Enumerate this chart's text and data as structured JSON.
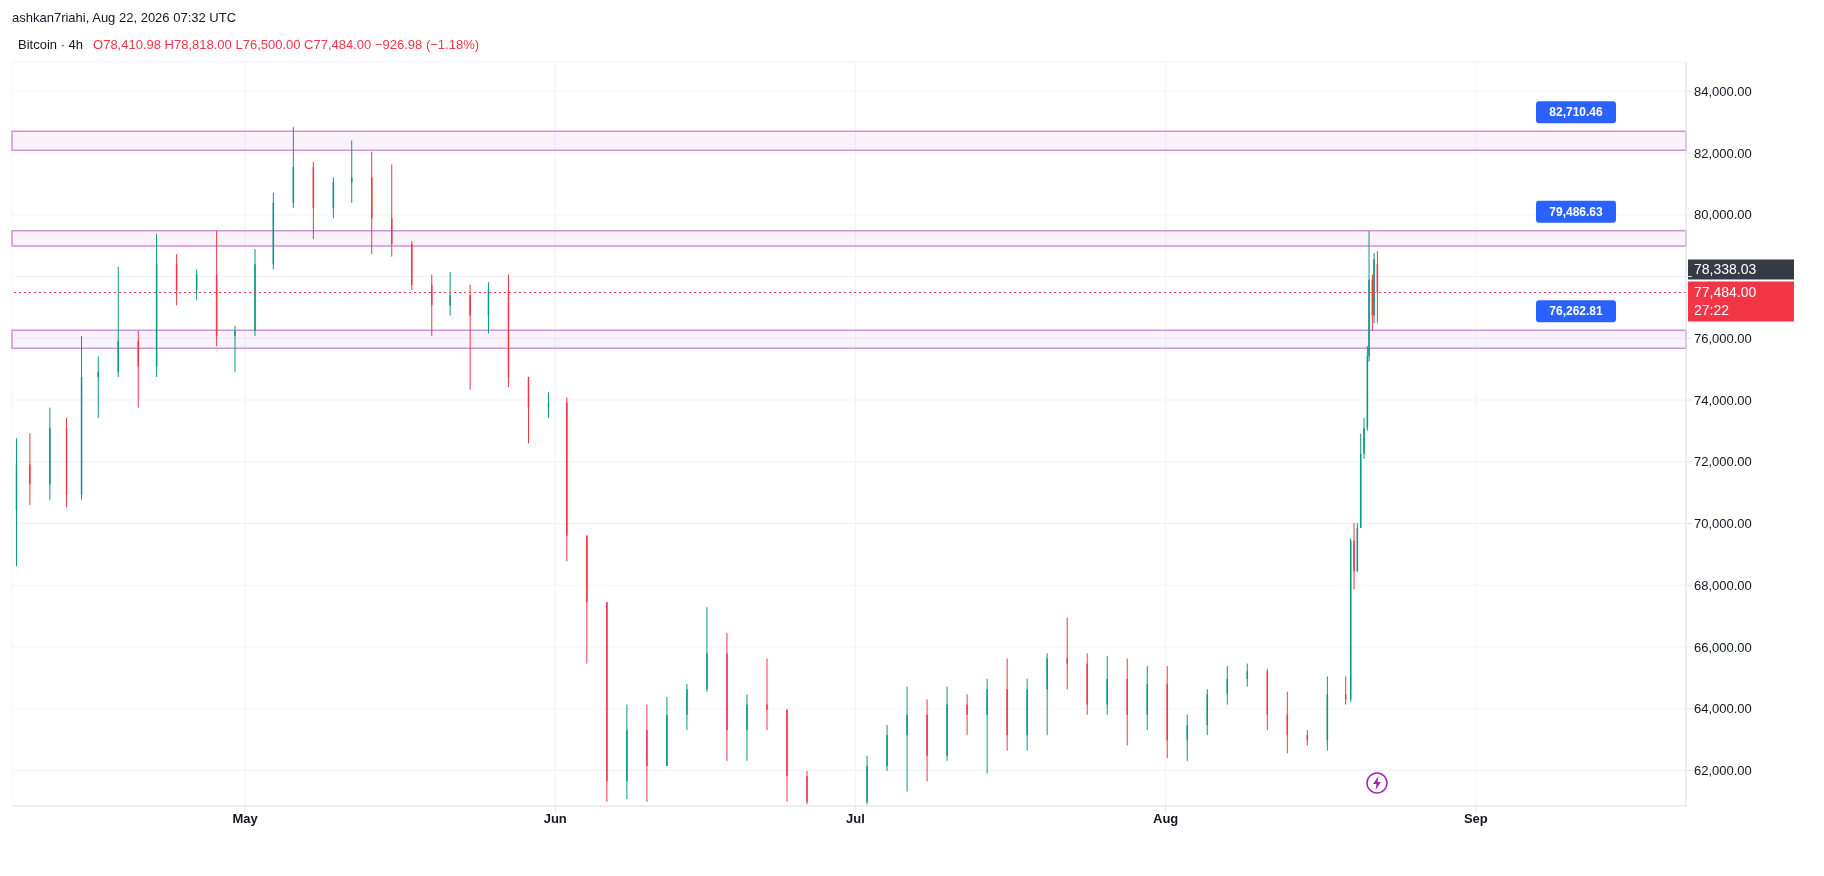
{
  "chart_data": {
    "type": "candlestick",
    "title": "Bitcoin · 4h",
    "annotations": [
      "ashkan7riahi, Aug 22, 2026 07:32 UTC",
      "O78,410.98 H78,818.00 L76,500.00 C77,484.00 −926.98 (−1.18%)",
      "78,338.03",
      "27:22"
    ],
    "x": [
      "2026-04-08T04:00",
      "2026-04-09T12:00",
      "2026-04-11T12:00",
      "2026-04-13T04:00",
      "2026-04-14T16:00",
      "2026-04-16T08:00",
      "2026-04-18T08:00",
      "2026-04-20T08:00",
      "2026-04-22T04:00",
      "2026-04-24T04:00",
      "2026-04-26T04:00",
      "2026-04-28T04:00",
      "2026-04-30T00:00",
      "2026-05-02T00:00",
      "2026-05-03T20:00",
      "2026-05-05T20:00",
      "2026-05-07T20:00",
      "2026-05-09T20:00",
      "2026-05-11T16:00",
      "2026-05-13T16:00",
      "2026-05-15T16:00",
      "2026-05-17T16:00",
      "2026-05-19T16:00",
      "2026-05-21T12:00",
      "2026-05-23T12:00",
      "2026-05-25T08:00",
      "2026-05-27T08:00",
      "2026-05-29T08:00",
      "2026-05-31T08:00",
      "2026-06-02T04:00",
      "2026-06-04T04:00",
      "2026-06-06T04:00",
      "2026-06-08T04:00",
      "2026-06-10T04:00",
      "2026-06-12T04:00",
      "2026-06-14T04:00",
      "2026-06-16T04:00",
      "2026-06-18T04:00",
      "2026-06-20T04:00",
      "2026-06-22T04:00",
      "2026-06-24T04:00",
      "2026-06-26T04:00",
      "2026-07-02T04:00",
      "2026-07-04T04:00",
      "2026-07-06T04:00",
      "2026-07-08T04:00",
      "2026-07-10T04:00",
      "2026-07-12T04:00",
      "2026-07-14T04:00",
      "2026-07-16T04:00",
      "2026-07-18T04:00",
      "2026-07-20T04:00",
      "2026-07-22T04:00",
      "2026-07-24T04:00",
      "2026-07-26T04:00",
      "2026-07-28T04:00",
      "2026-07-30T04:00",
      "2026-08-01T04:00",
      "2026-08-03T04:00",
      "2026-08-05T04:00",
      "2026-08-07T04:00",
      "2026-08-09T04:00",
      "2026-08-11T04:00",
      "2026-08-13T04:00",
      "2026-08-15T04:00",
      "2026-08-17T04:00",
      "2026-08-19T00:00",
      "2026-08-19T12:00",
      "2026-08-19T20:00",
      "2026-08-20T04:00",
      "2026-08-20T12:00",
      "2026-08-20T20:00",
      "2026-08-21T04:00",
      "2026-08-21T08:00",
      "2026-08-21T16:00",
      "2026-08-21T20:00",
      "2026-08-22T04:00"
    ],
    "ohlc": [
      [
        70438,
        72759,
        68615,
        71913
      ],
      [
        71913,
        72925,
        70604,
        71267
      ],
      [
        71267,
        73754,
        70770,
        73091
      ],
      [
        73091,
        73422,
        70521,
        70936
      ],
      [
        70936,
        76075,
        70770,
        74748
      ],
      [
        74748,
        75412,
        73422,
        74914
      ],
      [
        74914,
        78313,
        74748,
        75909
      ],
      [
        75909,
        76241,
        73754,
        75080
      ],
      [
        75080,
        79391,
        74748,
        78396
      ],
      [
        78396,
        78728,
        77070,
        77567
      ],
      [
        77567,
        78230,
        77235,
        78064
      ],
      [
        78064,
        79474,
        75743,
        76075
      ],
      [
        76075,
        76406,
        74914,
        76241
      ],
      [
        76241,
        78893,
        76075,
        78396
      ],
      [
        78396,
        80717,
        78230,
        80386
      ],
      [
        80386,
        82839,
        80220,
        81546
      ],
      [
        81546,
        81712,
        79225,
        80220
      ],
      [
        80220,
        81215,
        79888,
        81049
      ],
      [
        81049,
        82408,
        80386,
        81215
      ],
      [
        81215,
        82044,
        78728,
        79888
      ],
      [
        79888,
        81629,
        78645,
        79059
      ],
      [
        79059,
        79142,
        77567,
        77733
      ],
      [
        77733,
        78064,
        76075,
        77070
      ],
      [
        77070,
        78147,
        76738,
        77401
      ],
      [
        77401,
        77733,
        74334,
        76738
      ],
      [
        76738,
        77816,
        76158,
        77567
      ],
      [
        77567,
        78064,
        74417,
        74748
      ],
      [
        74748,
        74748,
        72593,
        73754
      ],
      [
        73754,
        74251,
        73422,
        73920
      ],
      [
        73920,
        74086,
        68780,
        69609
      ],
      [
        69609,
        69609,
        65463,
        67453
      ],
      [
        67453,
        67453,
        60987,
        61650
      ],
      [
        61650,
        64136,
        61070,
        63308
      ],
      [
        63308,
        64136,
        60987,
        62147
      ],
      [
        62147,
        64384,
        62147,
        63805
      ],
      [
        63805,
        64799,
        63308,
        64633
      ],
      [
        64633,
        67287,
        64550,
        65795
      ],
      [
        65795,
        66458,
        62313,
        63308
      ],
      [
        63308,
        64467,
        62313,
        64136
      ],
      [
        64136,
        65629,
        63308,
        63971
      ],
      [
        63971,
        63971,
        60987,
        61816
      ],
      [
        61816,
        61982,
        60904,
        60987
      ],
      [
        60987,
        62479,
        60904,
        62147
      ],
      [
        62147,
        63474,
        61982,
        63143
      ],
      [
        63143,
        64716,
        61319,
        63805
      ],
      [
        63805,
        64302,
        61650,
        62479
      ],
      [
        62479,
        64716,
        62313,
        64136
      ],
      [
        64136,
        64467,
        63143,
        63805
      ],
      [
        63805,
        64965,
        61899,
        64633
      ],
      [
        64633,
        65629,
        62645,
        63143
      ],
      [
        63143,
        64965,
        62645,
        64633
      ],
      [
        64633,
        65795,
        63143,
        65629
      ],
      [
        65629,
        66955,
        64633,
        65463
      ],
      [
        65463,
        65795,
        63805,
        64136
      ],
      [
        64136,
        65712,
        63805,
        64965
      ],
      [
        64965,
        65629,
        62811,
        63805
      ],
      [
        63805,
        65380,
        63308,
        64799
      ],
      [
        64799,
        65380,
        62396,
        62977
      ],
      [
        62977,
        63805,
        62313,
        63474
      ],
      [
        63474,
        64633,
        63143,
        64467
      ],
      [
        64467,
        65380,
        64136,
        64965
      ],
      [
        64965,
        65463,
        64716,
        65214
      ],
      [
        65214,
        65297,
        63308,
        63805
      ],
      [
        63805,
        64550,
        62562,
        63143
      ],
      [
        63143,
        63308,
        62811,
        62977
      ],
      [
        62977,
        65048,
        62645,
        64467
      ],
      [
        64467,
        65048,
        64136,
        64301
      ],
      [
        64301,
        69526,
        64218,
        69444
      ],
      [
        69444,
        70018,
        67868,
        68449
      ],
      [
        68449,
        70018,
        68449,
        69858
      ],
      [
        69858,
        72908,
        69858,
        72262
      ],
      [
        72262,
        73422,
        72096,
        73091
      ],
      [
        73091,
        75743,
        73008,
        75412
      ],
      [
        75412,
        79474,
        75246,
        77899
      ],
      [
        77899,
        78064,
        76241,
        76738
      ],
      [
        76738,
        78760,
        76489,
        78562
      ],
      [
        78410.98,
        78818,
        76500,
        77484
      ]
    ],
    "colors": [
      "#089981",
      "#f23645",
      "#089981",
      "#f23645",
      "#089981",
      "#089981",
      "#089981",
      "#f23645",
      "#089981",
      "#f23645",
      "#089981",
      "#f23645",
      "#089981",
      "#089981",
      "#089981",
      "#089981",
      "#f23645",
      "#089981",
      "#089981",
      "#f23645",
      "#f23645",
      "#f23645",
      "#f23645",
      "#089981",
      "#f23645",
      "#089981",
      "#f23645",
      "#f23645",
      "#089981",
      "#f23645",
      "#f23645",
      "#f23645",
      "#089981",
      "#f23645",
      "#089981",
      "#089981",
      "#089981",
      "#f23645",
      "#089981",
      "#f23645",
      "#f23645",
      "#f23645",
      "#089981",
      "#089981",
      "#089981",
      "#f23645",
      "#089981",
      "#f23645",
      "#089981",
      "#f23645",
      "#089981",
      "#089981",
      "#f23645",
      "#f23645",
      "#089981",
      "#f23645",
      "#089981",
      "#f23645",
      "#089981",
      "#089981",
      "#089981",
      "#089981",
      "#f23645",
      "#f23645",
      "#f23645",
      "#089981",
      "#f23645",
      "#089981",
      "#f23645",
      "#089981",
      "#089981",
      "#089981",
      "#089981",
      "#089981",
      "#f23645",
      "#089981",
      "#f23645"
    ],
    "xlim": [
      "2026-04-07T17:00",
      "2026-09-22T00:00"
    ],
    "xticks": [
      {
        "value": "2026-05-01T00:00",
        "label": "May"
      },
      {
        "value": "2026-06-01T00:00",
        "label": "Jun"
      },
      {
        "value": "2026-07-01T00:00",
        "label": "Jul"
      },
      {
        "value": "2026-08-01T00:00",
        "label": "Aug"
      },
      {
        "value": "2026-09-01T00:00",
        "label": "Sep"
      }
    ],
    "ylim": [
      60850,
      84950
    ],
    "yticks": [
      {
        "value": 62000,
        "label": "62,000.00"
      },
      {
        "value": 64000,
        "label": "64,000.00"
      },
      {
        "value": 66000,
        "label": "66,000.00"
      },
      {
        "value": 68000,
        "label": "68,000.00"
      },
      {
        "value": 70000,
        "label": "70,000.00"
      },
      {
        "value": 72000,
        "label": "72,000.00"
      },
      {
        "value": 74000,
        "label": "74,000.00"
      },
      {
        "value": 76000,
        "label": "76,000.00"
      },
      {
        "value": 78000,
        "label": null
      },
      {
        "value": 80000,
        "label": "80,000.00"
      },
      {
        "value": 82000,
        "label": "82,000.00"
      },
      {
        "value": 84000,
        "label": "84,000.00"
      }
    ],
    "bands": [
      {
        "axis": "y",
        "from": 82093,
        "to": 82710.46,
        "label": "82,710.46",
        "color": "#ce93d8"
      },
      {
        "axis": "y",
        "from": 78993,
        "to": 79486.63,
        "label": "79,486.63",
        "color": "#ce93d8"
      },
      {
        "axis": "y",
        "from": 75677,
        "to": 76262.81,
        "label": "76,262.81",
        "color": "#ce93d8"
      }
    ],
    "ref_lines": [
      {
        "axis": "y",
        "value": 77484,
        "label": "77,484.00",
        "color": "#f23645",
        "line_style": "dotted"
      }
    ],
    "grid": true
  }
}
